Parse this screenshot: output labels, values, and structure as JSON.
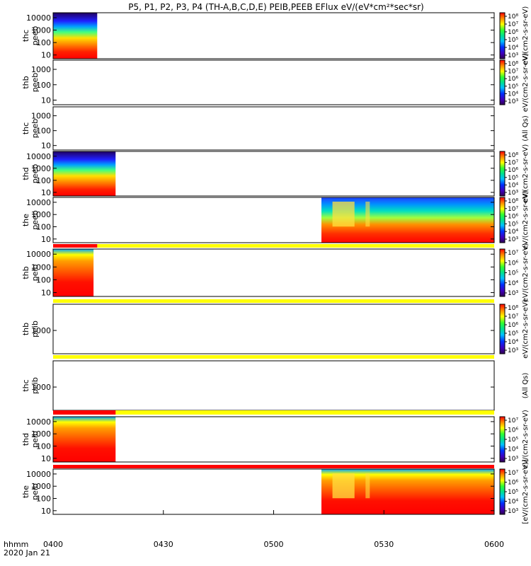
{
  "chart_data": {
    "type": "heatmap",
    "title": "P5, P1, P2, P3, P4 (TH-A,B,C,D,E) PEIB,PEEB EFlux eV/(eV*cm²*sec*sr)",
    "x_start_label": "hhmm",
    "date_label": "2020 Jan 21",
    "x_range_minutes": [
      0,
      120
    ],
    "x_tick_labels": [
      "0400",
      "0430",
      "0500",
      "0530",
      "0600"
    ],
    "x_tick_minutes": [
      0,
      30,
      60,
      90,
      120
    ],
    "panels": [
      {
        "probe": "thc",
        "species": "peeb",
        "y_ticks": [
          "10000",
          "1000",
          "100",
          "10"
        ],
        "y_range_log": [
          0.7,
          4.4
        ],
        "data_minutes": [
          0,
          12
        ],
        "flag_bar": null,
        "colorbar_ticks": [
          "10⁸",
          "10⁷",
          "10⁶",
          "10⁵",
          "10⁴",
          "10³"
        ],
        "colorbar_label": "eV/(cm2-s-sr-eV)"
      },
      {
        "probe": "thb",
        "species": "peeb",
        "y_ticks": [
          "1000",
          "100",
          "10"
        ],
        "y_range_log": [
          0.7,
          3.6
        ],
        "data_minutes": null,
        "flag_bar": null,
        "colorbar_ticks": [
          "10⁸",
          "10⁷",
          "10⁶",
          "10⁵",
          "10⁴",
          "10³"
        ],
        "colorbar_label": "eV/(cm2-s-sr-eV)"
      },
      {
        "probe": "thc",
        "species": "peeb",
        "y_ticks": [
          "1000",
          "100",
          "10"
        ],
        "y_range_log": [
          0.7,
          3.6
        ],
        "data_minutes": null,
        "flag_bar": null,
        "colorbar_ticks": [],
        "colorbar_label": "(All Qs)"
      },
      {
        "probe": "thd",
        "species": "peeb",
        "y_ticks": [
          "10000",
          "1000",
          "100",
          "10"
        ],
        "y_range_log": [
          0.7,
          4.4
        ],
        "data_minutes": [
          0,
          17
        ],
        "flag_bar": null,
        "colorbar_ticks": [
          "10⁸",
          "10⁷",
          "10⁶",
          "10⁵",
          "10⁴",
          "10³"
        ],
        "colorbar_label": "eV/(cm2-s-sr-eV)"
      },
      {
        "probe": "the",
        "species": "peeb",
        "y_ticks": [
          "10000",
          "1000",
          "100",
          "10"
        ],
        "y_range_log": [
          0.7,
          4.4
        ],
        "data_minutes": [
          73,
          120
        ],
        "flag_bar": null,
        "colorbar_ticks": [
          "10⁸",
          "10⁷",
          "10⁶",
          "10⁵",
          "10⁴",
          "10³"
        ],
        "colorbar_label": "eV/(cm2-s-sr-eV)"
      },
      {
        "probe": "thb",
        "species": "peib",
        "y_ticks": [
          "10000",
          "1000",
          "100",
          "10"
        ],
        "y_range_log": [
          0.7,
          4.4
        ],
        "data_minutes": [
          0,
          11
        ],
        "flag_bar": {
          "red_minutes": [
            0,
            12
          ]
        },
        "colorbar_ticks": [
          "10⁷",
          "10⁶",
          "10⁵",
          "10⁴",
          "10³"
        ],
        "colorbar_label": "eV/(cm2-s-sr-eV)"
      },
      {
        "probe": "thb",
        "species": "peib",
        "y_ticks": [
          "1000"
        ],
        "y_range_log": [
          2.2,
          3.9
        ],
        "data_minutes": null,
        "flag_bar": {
          "red_minutes": null
        },
        "colorbar_ticks": [
          "10⁸",
          "10⁷",
          "10⁶",
          "10⁵",
          "10⁴",
          "10³"
        ],
        "colorbar_label": "eV/(cm2-s-sr-eV)"
      },
      {
        "probe": "thc",
        "species": "peib",
        "y_ticks": [
          "1000"
        ],
        "y_range_log": [
          2.2,
          3.9
        ],
        "data_minutes": null,
        "flag_bar": {
          "red_minutes": null
        },
        "colorbar_ticks": [],
        "colorbar_label": "(All Qs)"
      },
      {
        "probe": "thd",
        "species": "peib",
        "y_ticks": [
          "10000",
          "1000",
          "100",
          "10"
        ],
        "y_range_log": [
          0.7,
          4.4
        ],
        "data_minutes": [
          0,
          17
        ],
        "flag_bar": {
          "red_minutes": [
            0,
            17
          ]
        },
        "colorbar_ticks": [
          "10⁷",
          "10⁶",
          "10⁵",
          "10⁴",
          "10³"
        ],
        "colorbar_label": "eV/(cm2-s-sr-eV)"
      },
      {
        "probe": "the",
        "species": "peib",
        "y_ticks": [
          "10000",
          "1000",
          "100",
          "10"
        ],
        "y_range_log": [
          0.7,
          4.4
        ],
        "data_minutes": [
          73,
          120
        ],
        "flag_bar": {
          "red_minutes": [
            0,
            120
          ]
        },
        "colorbar_ticks": [
          "10⁷",
          "10⁶",
          "10⁵",
          "10⁴",
          "10³"
        ],
        "colorbar_label": "[eV/(cm2-s-sr-eV)]"
      }
    ]
  },
  "colors": {
    "flag_yellow": "#ffff00",
    "flag_red": "#ff0000"
  }
}
